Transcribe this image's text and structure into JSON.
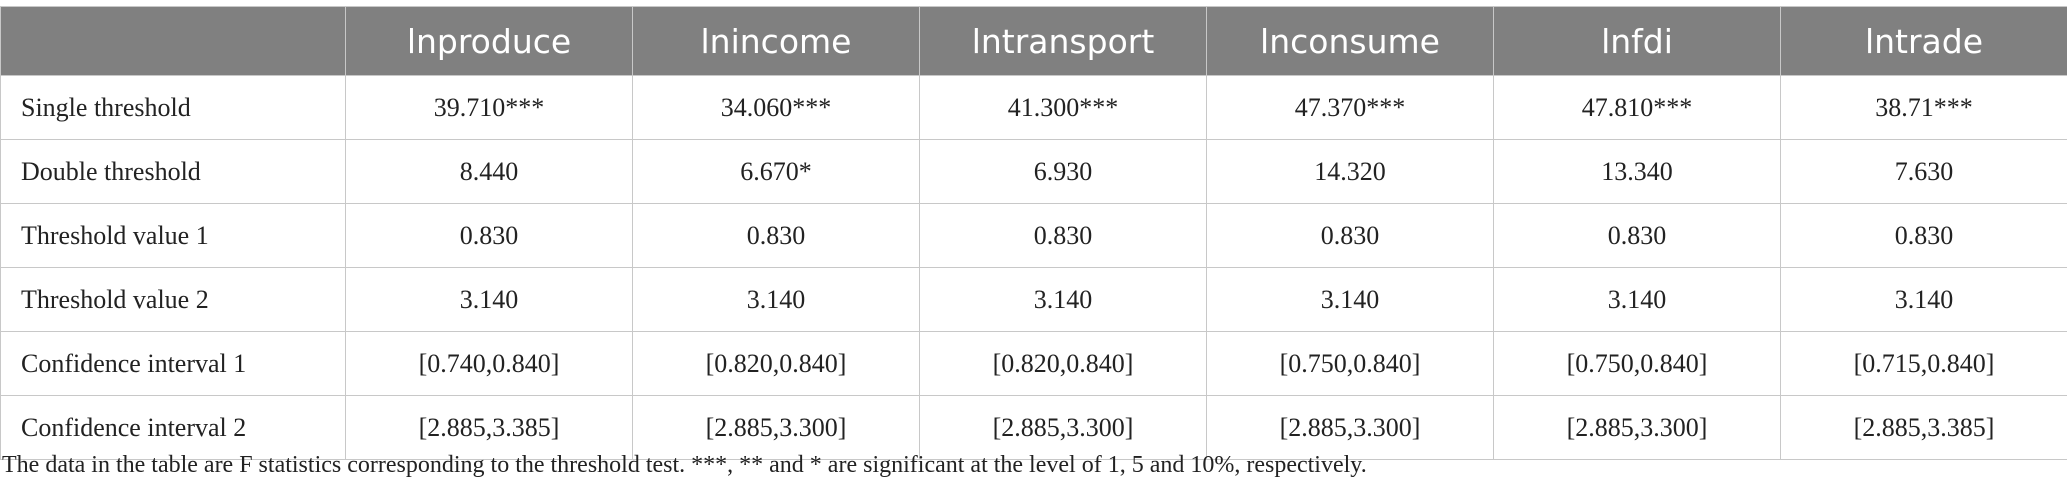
{
  "table": {
    "columns": [
      "lnproduce",
      "lnincome",
      "lntransport",
      "lnconsume",
      "lnfdi",
      "lntrade"
    ],
    "rows": [
      {
        "label": "Single threshold",
        "values": [
          "39.710***",
          "34.060***",
          "41.300***",
          "47.370***",
          "47.810***",
          "38.71***"
        ]
      },
      {
        "label": "Double threshold",
        "values": [
          "8.440",
          "6.670*",
          "6.930",
          "14.320",
          "13.340",
          "7.630"
        ]
      },
      {
        "label": "Threshold value 1",
        "values": [
          "0.830",
          "0.830",
          "0.830",
          "0.830",
          "0.830",
          "0.830"
        ]
      },
      {
        "label": "Threshold value 2",
        "values": [
          "3.140",
          "3.140",
          "3.140",
          "3.140",
          "3.140",
          "3.140"
        ]
      },
      {
        "label": "Confidence interval 1",
        "values": [
          "[0.740,0.840]",
          "[0.820,0.840]",
          "[0.820,0.840]",
          "[0.750,0.840]",
          "[0.750,0.840]",
          "[0.715,0.840]"
        ]
      },
      {
        "label": "Confidence interval 2",
        "values": [
          "[2.885,3.385]",
          "[2.885,3.300]",
          "[2.885,3.300]",
          "[2.885,3.300]",
          "[2.885,3.300]",
          "[2.885,3.385]"
        ]
      }
    ]
  },
  "footnote": "The data in the table are F statistics corresponding to the threshold test. ***, ** and * are significant at the level of 1, 5 and 10%, respectively."
}
